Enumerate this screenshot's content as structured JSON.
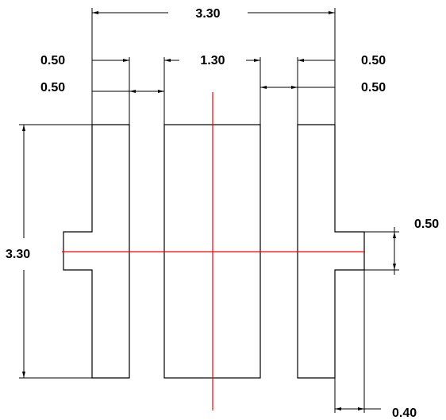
{
  "drawing": {
    "dimensions": {
      "overall_width": "3.30",
      "left_pad_width": "0.50",
      "left_gap": "0.50",
      "center_pad_width": "1.30",
      "right_pad_width": "0.50",
      "right_gap": "0.50",
      "overall_height": "3.30",
      "tab_height": "0.50",
      "tab_extension": "0.40"
    },
    "colors": {
      "outline": "#000000",
      "hatch": "#ff00ff",
      "center_line": "#ff0000",
      "dimension": "#000000"
    }
  }
}
